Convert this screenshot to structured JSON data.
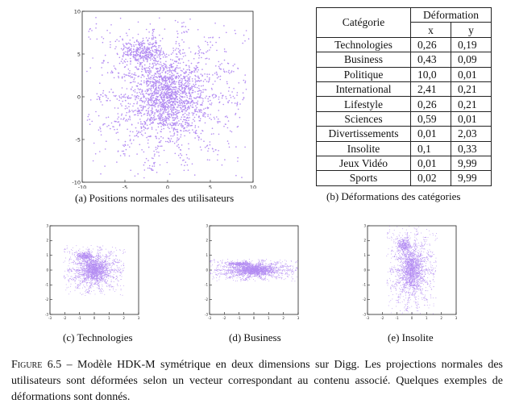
{
  "figure": {
    "label": "Figure 6.5",
    "caption": " – Modèle HDK-M symétrique en deux dimensions sur Digg. Les projections normales des utilisateurs sont déformées selon un vecteur correspondant au contenu associé. Quelques exemples de déformations sont donnés."
  },
  "table": {
    "header_category": "Catégorie",
    "header_group": "Déformation",
    "header_x": "x",
    "header_y": "y",
    "rows": [
      {
        "category": "Technologies",
        "x": "0,26",
        "y": "0,19"
      },
      {
        "category": "Business",
        "x": "0,43",
        "y": "0,09"
      },
      {
        "category": "Politique",
        "x": "10,0",
        "y": "0,01"
      },
      {
        "category": "International",
        "x": "2,41",
        "y": "0,21"
      },
      {
        "category": "Lifestyle",
        "x": "0,26",
        "y": "0,21"
      },
      {
        "category": "Sciences",
        "x": "0,59",
        "y": "0,01"
      },
      {
        "category": "Divertissements",
        "x": "0,01",
        "y": "2,03"
      },
      {
        "category": "Insolite",
        "x": "0,1",
        "y": "0,33"
      },
      {
        "category": "Jeux Vidéo",
        "x": "0,01",
        "y": "9,99"
      },
      {
        "category": "Sports",
        "x": "0,02",
        "y": "9,99"
      }
    ],
    "caption": "(b) Déformations des catégories"
  },
  "colors": {
    "points": "#b38cf2",
    "axis": "#222222"
  },
  "chart_data": [
    {
      "type": "scatter",
      "caption": "(a) Positions normales des utilisateurs",
      "xlim": [
        -10,
        10
      ],
      "ylim": [
        -10,
        10
      ],
      "xticks": [
        -10,
        -5,
        0,
        5,
        10
      ],
      "yticks": [
        -10,
        -5,
        0,
        5,
        10
      ],
      "deformation": [
        1,
        1
      ]
    },
    {
      "type": "scatter",
      "caption": "(c) Technologies",
      "xlim": [
        -3,
        3
      ],
      "ylim": [
        -3,
        3
      ],
      "xticks": [
        -3,
        -2,
        -1,
        0,
        1,
        2,
        3
      ],
      "yticks": [
        -3,
        -2,
        -1,
        0,
        1,
        2,
        3
      ],
      "deformation": [
        0.26,
        0.19
      ]
    },
    {
      "type": "scatter",
      "caption": "(d) Business",
      "xlim": [
        -3,
        3
      ],
      "ylim": [
        -3,
        3
      ],
      "xticks": [
        -3,
        -2,
        -1,
        0,
        1,
        2,
        3
      ],
      "yticks": [
        -3,
        -2,
        -1,
        0,
        1,
        2,
        3
      ],
      "deformation": [
        0.43,
        0.09
      ]
    },
    {
      "type": "scatter",
      "caption": "(e) Insolite",
      "xlim": [
        -3,
        3
      ],
      "ylim": [
        -3,
        3
      ],
      "xticks": [
        -3,
        -2,
        -1,
        0,
        1,
        2,
        3
      ],
      "yticks": [
        -3,
        -2,
        -1,
        0,
        1,
        2,
        3
      ],
      "deformation": [
        0.1,
        0.33
      ]
    }
  ]
}
